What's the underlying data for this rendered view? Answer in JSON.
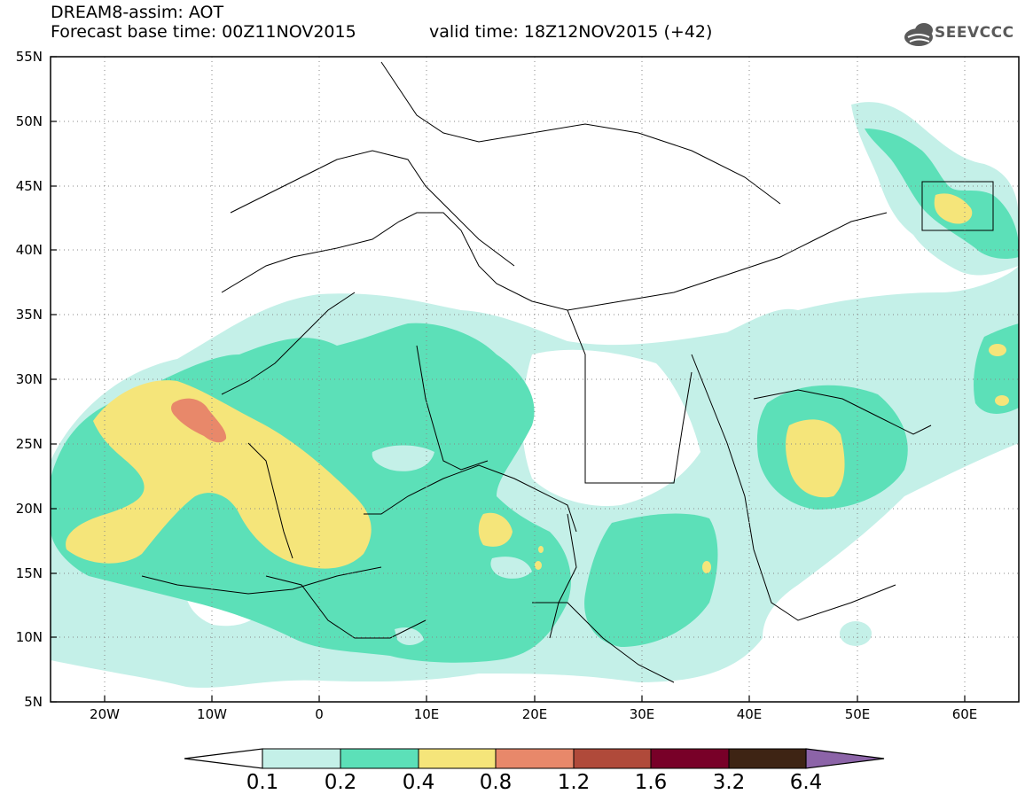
{
  "title": {
    "line1": "DREAM8-assim: AOT",
    "line2": "Forecast base time: 00Z11NOV2015",
    "valid": "valid time: 18Z12NOV2015 (+42)"
  },
  "logo": {
    "text": "SEEVCCC",
    "icon": "cloud-logo-icon"
  },
  "axes": {
    "lat_labels": [
      "55N",
      "50N",
      "45N",
      "40N",
      "35N",
      "30N",
      "25N",
      "20N",
      "15N",
      "10N",
      "5N"
    ],
    "lat_values": [
      55,
      50,
      45,
      40,
      35,
      30,
      25,
      20,
      15,
      10,
      5
    ],
    "lon_labels": [
      "20W",
      "10W",
      "0",
      "10E",
      "20E",
      "30E",
      "40E",
      "50E",
      "60E"
    ],
    "lon_values": [
      -20,
      -10,
      0,
      10,
      20,
      30,
      40,
      50,
      60
    ],
    "lon_range": [
      -25,
      65
    ],
    "lat_range": [
      5,
      55
    ],
    "grid": "dotted"
  },
  "colorbar": {
    "levels": [
      "0.1",
      "0.2",
      "0.4",
      "0.8",
      "1.2",
      "1.6",
      "3.2",
      "6.4"
    ],
    "colors": [
      "#ffffff",
      "#c4f0e8",
      "#5ce0b8",
      "#f5e57a",
      "#e8886a",
      "#b04a3a",
      "#780028",
      "#3e2414",
      "#8c64a8"
    ]
  },
  "legend_colors": {
    "low": "#c4f0e8",
    "mid": "#5ce0b8",
    "high": "#f5e57a",
    "vhigh": "#e8886a"
  }
}
